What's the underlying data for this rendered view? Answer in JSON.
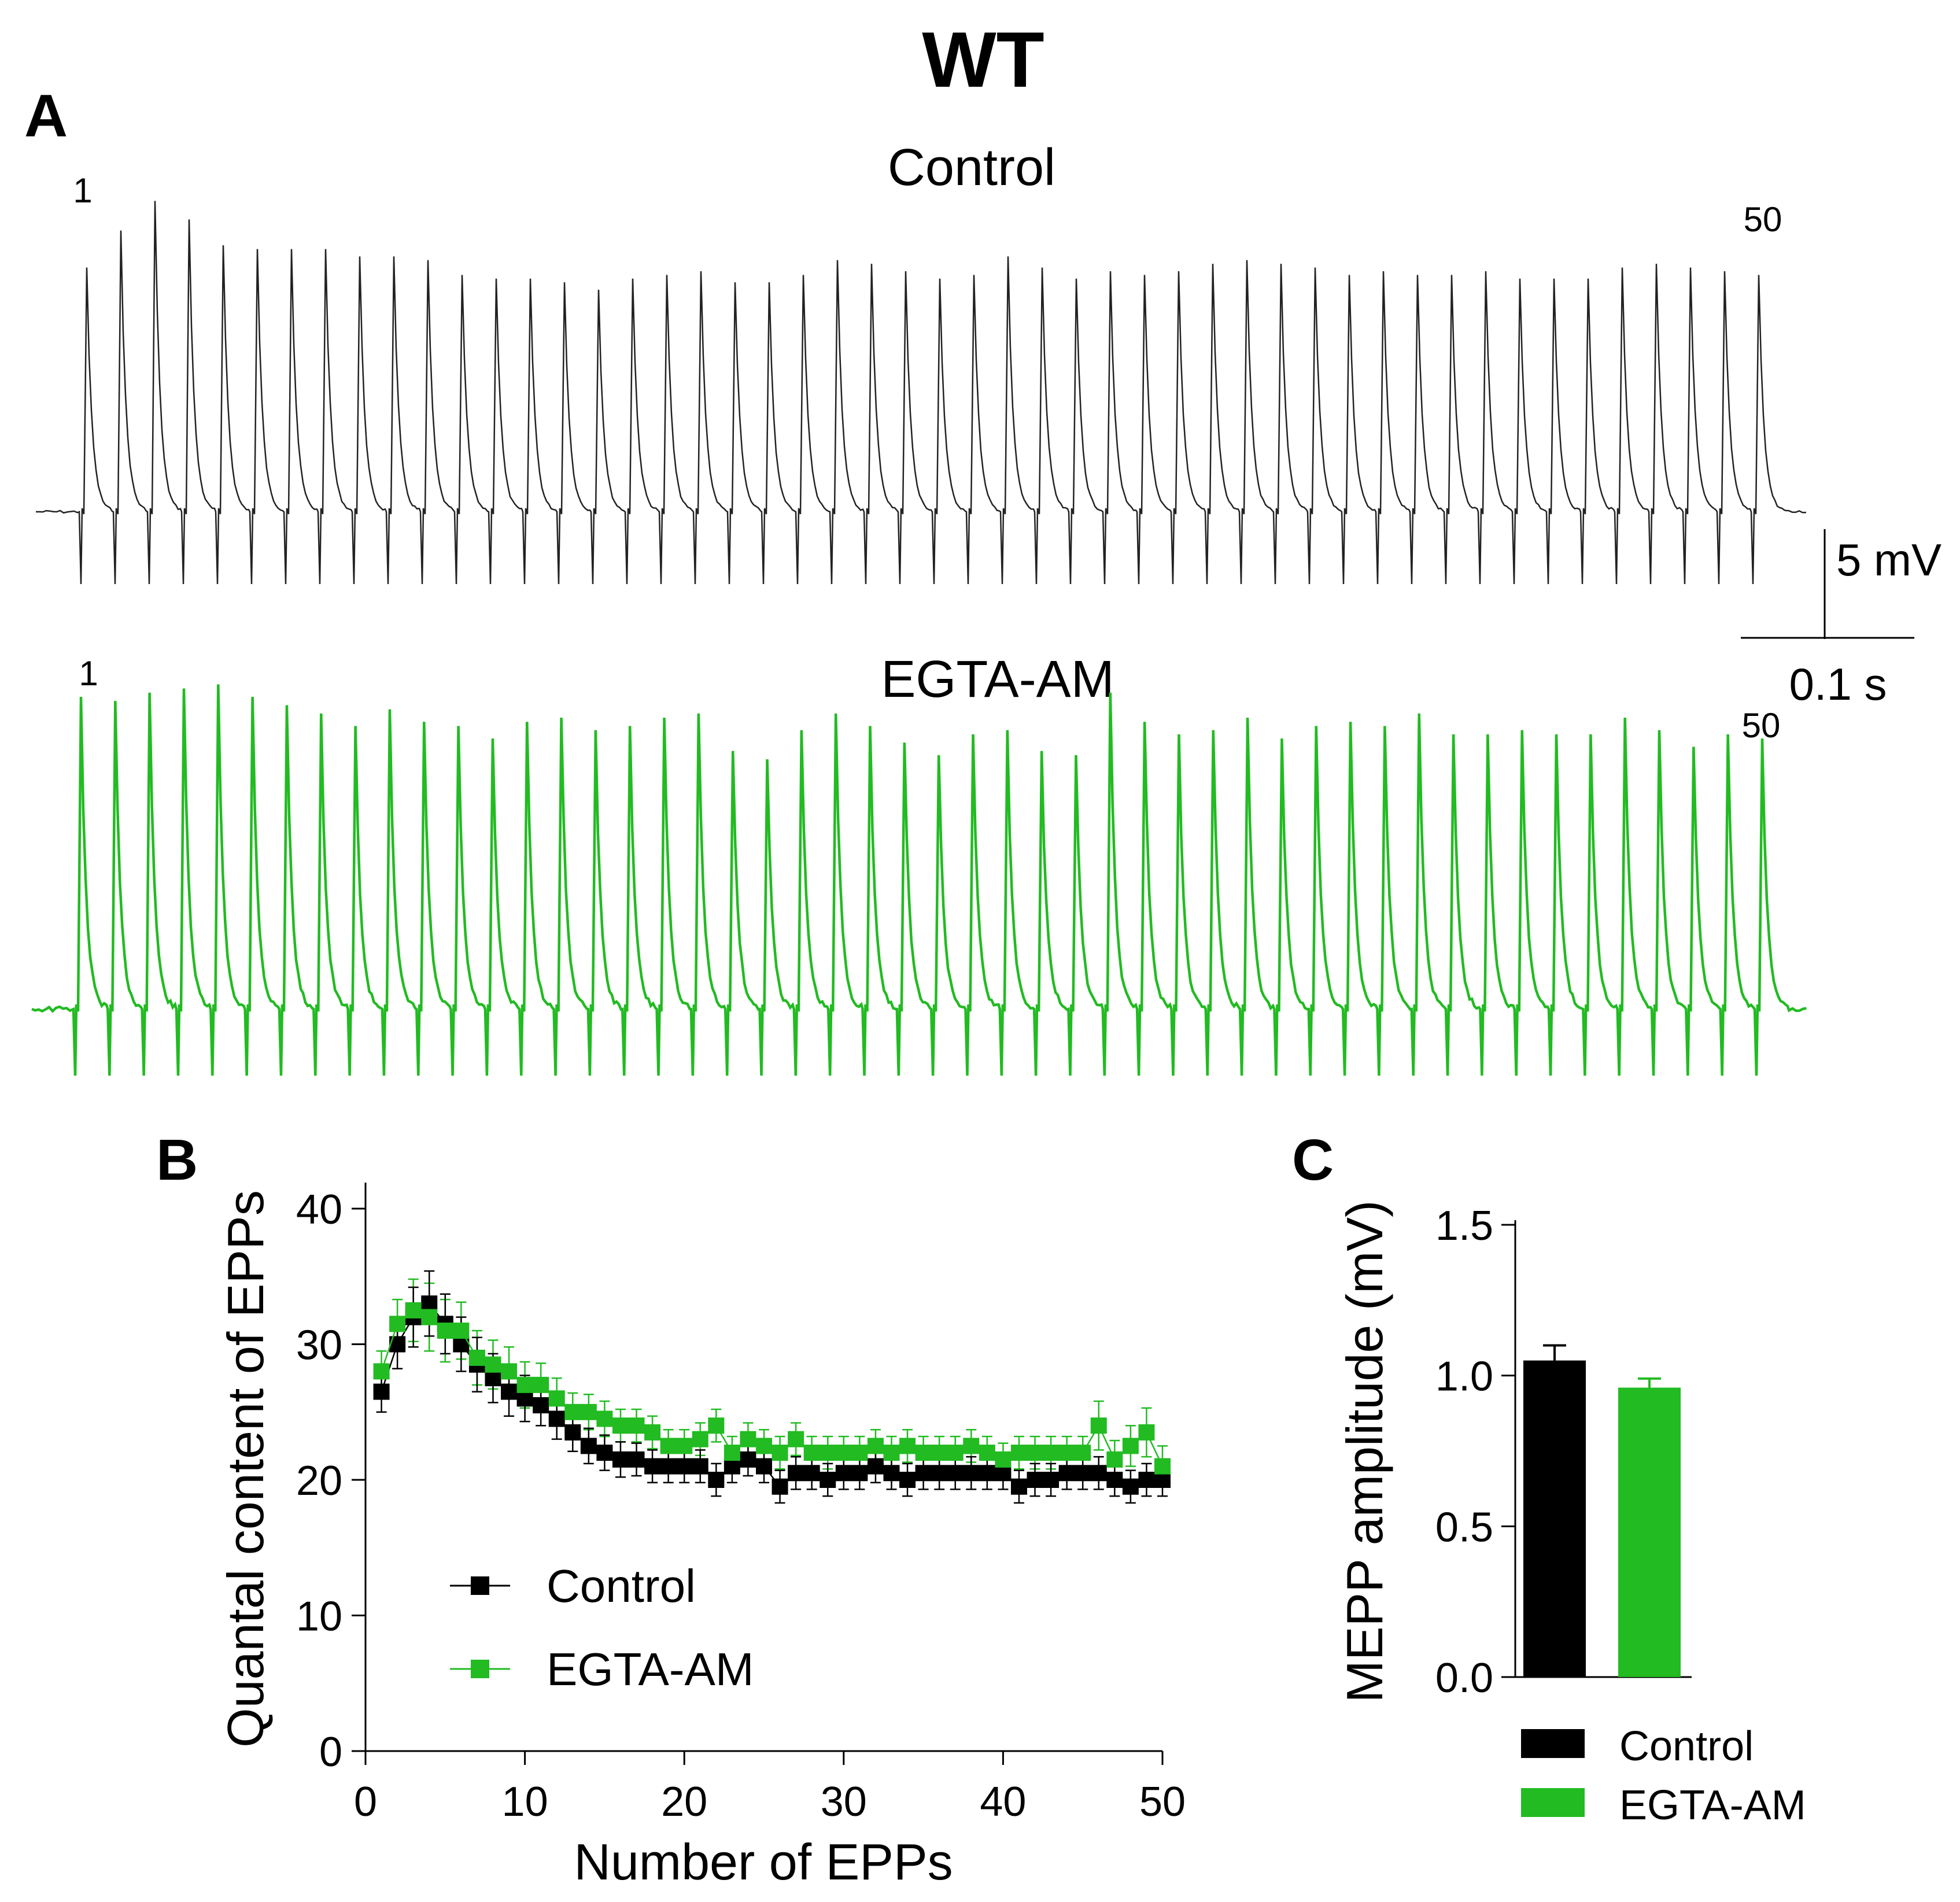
{
  "figure": {
    "title": "WT",
    "panel_a_label": "A",
    "panel_b_label": "B",
    "panel_c_label": "C"
  },
  "colors": {
    "control": "#000000",
    "egta": "#22bb22",
    "trace_control": "#222222"
  },
  "chart_data": [
    {
      "type": "trace",
      "panel": "A",
      "traces": [
        {
          "name": "Control",
          "label": "Control",
          "first_label": "1",
          "last_label": "50",
          "n_events": 50,
          "peak_amplitudes_mV": [
            6.6,
            7.6,
            8.4,
            7.9,
            7.2,
            7.1,
            7.1,
            7.1,
            6.9,
            6.9,
            6.8,
            6.4,
            6.3,
            6.3,
            6.2,
            6.0,
            6.3,
            6.4,
            6.5,
            6.2,
            6.2,
            6.4,
            6.8,
            6.7,
            6.5,
            6.3,
            6.4,
            6.9,
            6.6,
            6.3,
            6.5,
            6.4,
            6.5,
            6.7,
            6.8,
            6.7,
            6.6,
            6.4,
            6.5,
            6.4,
            6.4,
            6.5,
            6.3,
            6.3,
            6.3,
            6.6,
            6.7,
            6.6,
            6.5,
            6.4
          ]
        },
        {
          "name": "EGTA-AM",
          "label": "EGTA-AM",
          "first_label": "1",
          "last_label": "50",
          "n_events": 50,
          "peak_amplitudes_mV": [
            7.5,
            7.4,
            7.6,
            7.7,
            7.8,
            7.5,
            7.3,
            7.1,
            6.8,
            7.2,
            6.9,
            6.8,
            6.5,
            6.9,
            7.0,
            6.7,
            6.8,
            7.0,
            7.1,
            6.2,
            6.0,
            6.7,
            7.1,
            6.8,
            6.4,
            6.1,
            6.6,
            6.7,
            6.2,
            6.1,
            7.6,
            6.9,
            6.6,
            6.7,
            7.0,
            6.5,
            6.8,
            6.9,
            6.8,
            7.1,
            6.6,
            6.6,
            6.7,
            6.6,
            6.6,
            7.0,
            6.7,
            6.3,
            6.6,
            6.5
          ]
        }
      ],
      "scale_bar": {
        "voltage_label": "5 mV",
        "time_label": "0.1 s"
      }
    },
    {
      "type": "scatter",
      "panel": "B",
      "xlabel": "Number of EPPs",
      "ylabel": "Quantal content of EPPs",
      "xlim": [
        0,
        50
      ],
      "ylim": [
        0,
        42
      ],
      "xticks": [
        "0",
        "10",
        "20",
        "30",
        "40",
        "50"
      ],
      "yticks": [
        "0",
        "10",
        "20",
        "30",
        "40"
      ],
      "x": [
        1,
        2,
        3,
        4,
        5,
        6,
        7,
        8,
        9,
        10,
        11,
        12,
        13,
        14,
        15,
        16,
        17,
        18,
        19,
        20,
        21,
        22,
        23,
        24,
        25,
        26,
        27,
        28,
        29,
        30,
        31,
        32,
        33,
        34,
        35,
        36,
        37,
        38,
        39,
        40,
        41,
        42,
        43,
        44,
        45,
        46,
        47,
        48,
        49,
        50
      ],
      "series": [
        {
          "name": "Control",
          "label": "Control",
          "values": [
            26.5,
            30.0,
            32.0,
            33.0,
            31.5,
            30.0,
            28.5,
            27.5,
            26.5,
            26.0,
            25.5,
            24.5,
            23.5,
            22.5,
            22.0,
            21.5,
            21.5,
            21.0,
            21.0,
            21.0,
            21.0,
            20.0,
            21.0,
            21.5,
            21.0,
            19.5,
            20.5,
            20.5,
            20.0,
            20.5,
            20.5,
            21.0,
            20.5,
            20.0,
            20.5,
            20.5,
            20.5,
            20.5,
            20.5,
            20.5,
            19.5,
            20.0,
            20.0,
            20.5,
            20.5,
            20.5,
            20.0,
            19.5,
            20.0,
            20.0
          ],
          "errors": [
            1.5,
            1.8,
            2.2,
            2.4,
            2.2,
            2.0,
            2.0,
            1.8,
            1.8,
            1.7,
            1.5,
            1.5,
            1.4,
            1.3,
            1.3,
            1.3,
            1.2,
            1.2,
            1.2,
            1.2,
            1.2,
            1.2,
            1.2,
            1.2,
            1.2,
            1.2,
            1.2,
            1.2,
            1.2,
            1.2,
            1.2,
            1.2,
            1.2,
            1.2,
            1.2,
            1.2,
            1.2,
            1.2,
            1.2,
            1.2,
            1.2,
            1.2,
            1.2,
            1.2,
            1.2,
            1.2,
            1.2,
            1.2,
            1.2,
            1.2
          ]
        },
        {
          "name": "EGTA-AM",
          "label": "EGTA-AM",
          "values": [
            28.0,
            31.5,
            32.5,
            32.0,
            31.0,
            31.0,
            29.0,
            28.5,
            28.0,
            27.0,
            27.0,
            26.0,
            25.0,
            25.0,
            24.5,
            24.0,
            24.0,
            23.5,
            22.5,
            22.5,
            23.0,
            24.0,
            22.0,
            23.0,
            22.5,
            22.0,
            23.0,
            22.0,
            22.0,
            22.0,
            22.0,
            22.5,
            22.0,
            22.5,
            22.0,
            22.0,
            22.0,
            22.5,
            22.0,
            21.5,
            22.0,
            22.0,
            22.0,
            22.0,
            22.0,
            24.0,
            21.5,
            22.5,
            23.5,
            21.0
          ],
          "errors": [
            1.5,
            1.8,
            2.3,
            2.5,
            2.3,
            2.1,
            2.0,
            1.8,
            1.8,
            1.7,
            1.6,
            1.5,
            1.4,
            1.3,
            1.3,
            1.2,
            1.2,
            1.2,
            1.2,
            1.2,
            1.2,
            1.2,
            1.2,
            1.2,
            1.2,
            1.2,
            1.2,
            1.2,
            1.2,
            1.2,
            1.2,
            1.2,
            1.2,
            1.2,
            1.2,
            1.2,
            1.2,
            1.2,
            1.2,
            1.2,
            1.2,
            1.2,
            1.2,
            1.2,
            1.2,
            1.8,
            1.4,
            1.5,
            1.8,
            1.5
          ]
        }
      ],
      "legend": {
        "position": "bottom-left"
      }
    },
    {
      "type": "bar",
      "panel": "C",
      "ylabel": "MEPP amplitude (mV)",
      "ylim": [
        0,
        1.5
      ],
      "yticks": [
        "0.0",
        "0.5",
        "1.0",
        "1.5"
      ],
      "categories": [
        "Control",
        "EGTA-AM"
      ],
      "values": [
        1.05,
        0.96
      ],
      "errors": [
        0.05,
        0.03
      ],
      "legend": {
        "position": "bottom"
      }
    }
  ]
}
